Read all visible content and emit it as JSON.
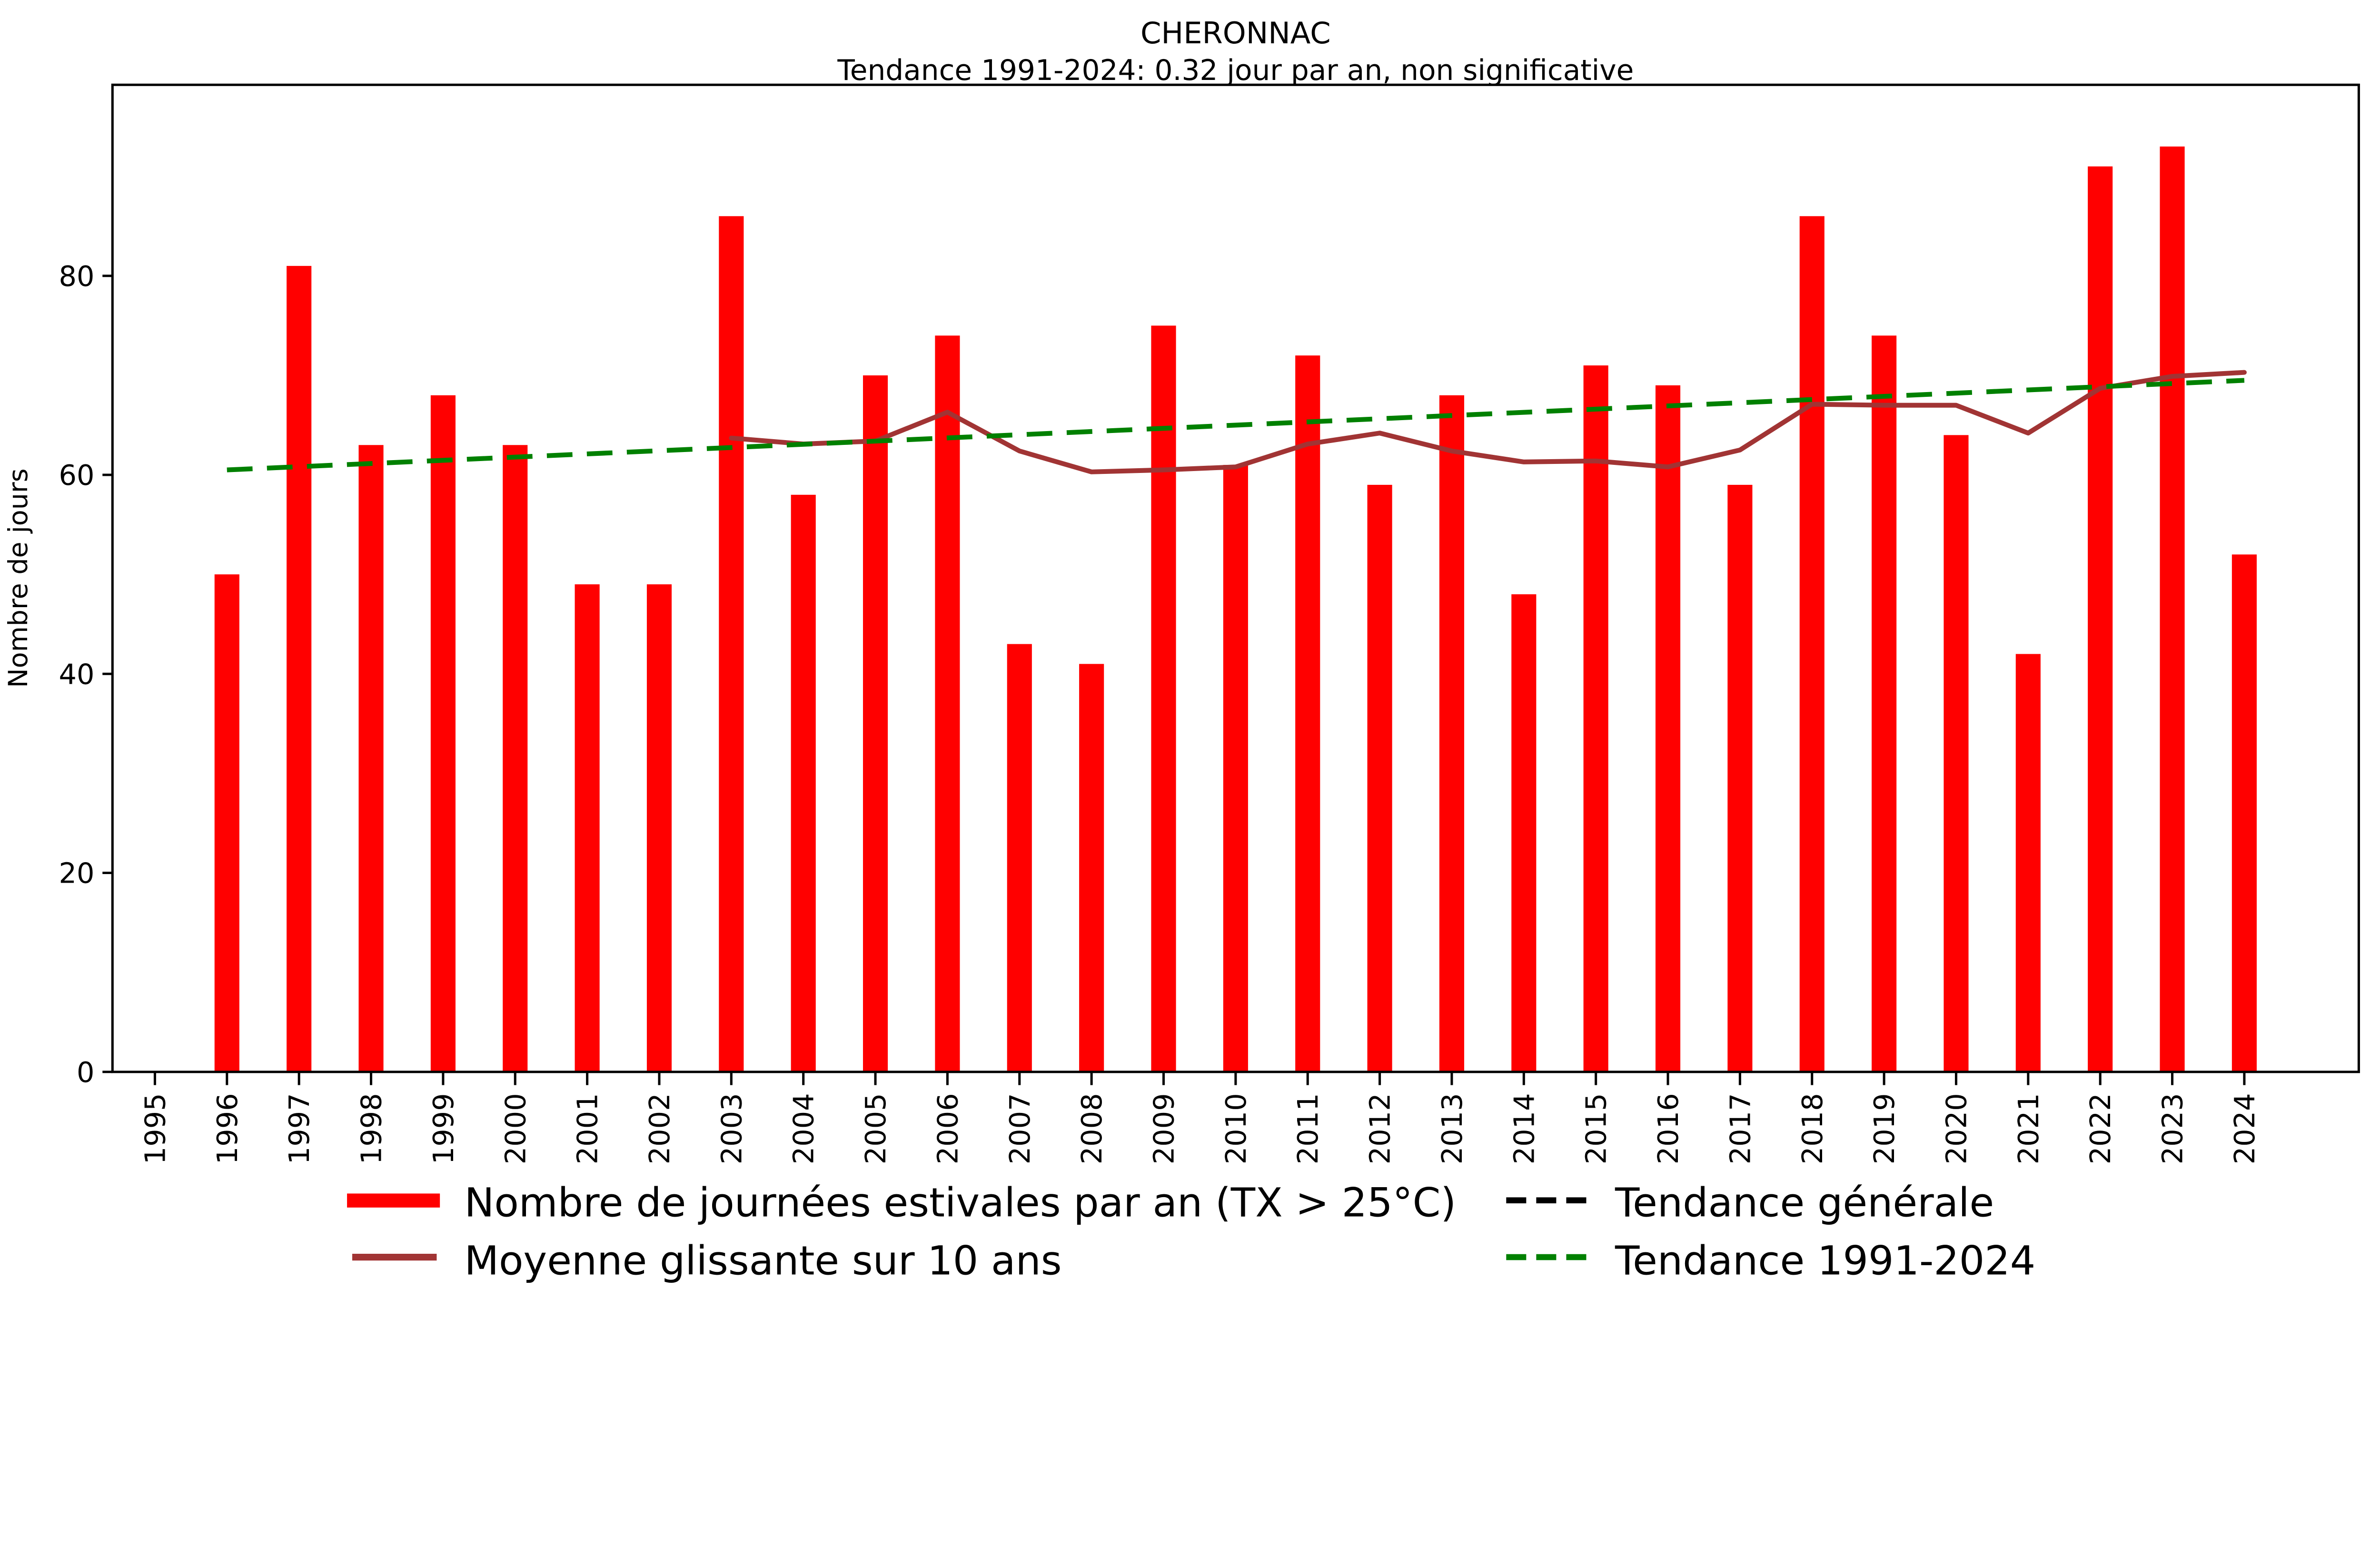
{
  "chart_data": {
    "type": "bar",
    "title": "CHERONNAC",
    "subtitle": "Tendance 1991-2024: 0.32 jour par an, non significative",
    "ylabel": "Nombre de jours",
    "xlabel": "",
    "ylim": [
      0,
      99.2
    ],
    "yticks": [
      0,
      20,
      40,
      60,
      80
    ],
    "grid": false,
    "legend_position": "bottom",
    "categories": [
      1995,
      1996,
      1997,
      1998,
      1999,
      2000,
      2001,
      2002,
      2003,
      2004,
      2005,
      2006,
      2007,
      2008,
      2009,
      2010,
      2011,
      2012,
      2013,
      2014,
      2015,
      2016,
      2017,
      2018,
      2019,
      2020,
      2021,
      2022,
      2023,
      2024
    ],
    "series": [
      {
        "name": "Nombre de journées estivales par an (TX > 25°C)",
        "type": "bar",
        "color": "#ff0000",
        "values": [
          null,
          50,
          81,
          63,
          68,
          63,
          49,
          49,
          86,
          58,
          70,
          74,
          43,
          41,
          75,
          61,
          72,
          59,
          68,
          48,
          71,
          69,
          59,
          86,
          74,
          64,
          42,
          91,
          93,
          52
        ]
      },
      {
        "name": "Moyenne glissante sur 10 ans",
        "type": "line",
        "color": "#a13434",
        "start_year": 2003,
        "values": [
          63.7,
          63.1,
          63.4,
          66.3,
          62.4,
          60.3,
          60.5,
          60.8,
          63.1,
          64.2,
          62.4,
          61.3,
          61.4,
          60.8,
          62.5,
          67.1,
          67.0,
          67.0,
          64.2,
          68.7,
          69.9,
          70.3
        ]
      },
      {
        "name": "Tendance générale",
        "type": "trend",
        "color": "#000000",
        "drawn": false
      },
      {
        "name": "Tendance 1991-2024",
        "type": "trend",
        "color": "#008000",
        "drawn": true,
        "start_year": 1996,
        "start_value": 60.5,
        "end_year": 2024,
        "end_value": 69.5
      }
    ]
  }
}
